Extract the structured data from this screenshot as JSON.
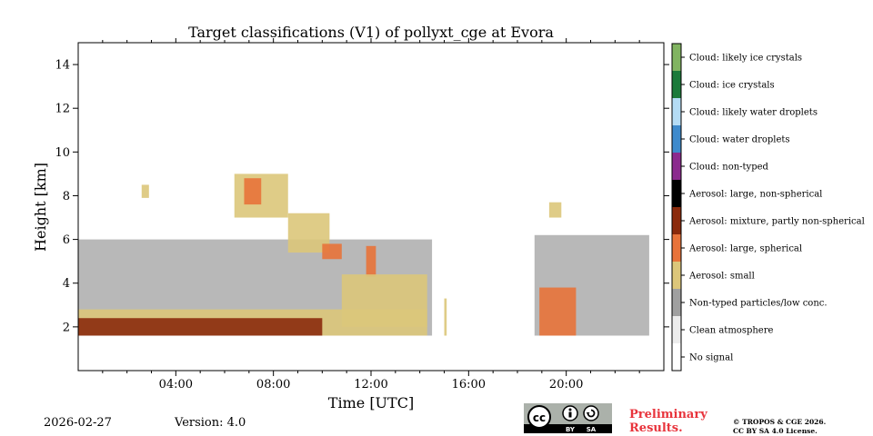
{
  "chart_data": {
    "type": "heatmap",
    "title": "Target classifications (V1) of pollyxt_cge at Evora",
    "xlabel": "Time [UTC]",
    "ylabel": "Height [km]",
    "xlim": [
      0,
      24
    ],
    "ylim": [
      0,
      15
    ],
    "x_ticks": [
      4,
      8,
      12,
      16,
      20
    ],
    "x_tick_labels": [
      "04:00",
      "08:00",
      "12:00",
      "16:00",
      "20:00"
    ],
    "y_ticks": [
      2,
      4,
      6,
      8,
      10,
      12,
      14
    ],
    "y_tick_labels": [
      "2",
      "4",
      "6",
      "8",
      "10",
      "12",
      "14"
    ],
    "colorbar": [
      {
        "label": "Cloud: likely ice crystals",
        "color": "#81b461"
      },
      {
        "label": "Cloud: ice crystals",
        "color": "#1b7a3a"
      },
      {
        "label": "Cloud: likely water droplets",
        "color": "#b4dcf5"
      },
      {
        "label": "Cloud: water droplets",
        "color": "#3e8acc"
      },
      {
        "label": "Cloud: non-typed",
        "color": "#8b2a8e"
      },
      {
        "label": "Aerosol: large, non-spherical",
        "color": "#000000"
      },
      {
        "label": "Aerosol: mixture, partly non-spherical",
        "color": "#8b2a0c"
      },
      {
        "label": "Aerosol: large, spherical",
        "color": "#e8733a"
      },
      {
        "label": "Aerosol: small",
        "color": "#dcc67a"
      },
      {
        "label": "Non-typed particles/low conc.",
        "color": "#a0a0a0"
      },
      {
        "label": "Clean atmosphere",
        "color": "#ececec"
      },
      {
        "label": "No signal",
        "color": "#ffffff"
      }
    ],
    "regions": [
      {
        "class": "Non-typed particles/low conc.",
        "t_start": 0.0,
        "t_end": 14.5,
        "h_bottom": 1.6,
        "h_top": 6.0
      },
      {
        "class": "Aerosol: small",
        "t_start": 0.0,
        "t_end": 14.3,
        "h_bottom": 1.6,
        "h_top": 2.8
      },
      {
        "class": "Aerosol: mixture, partly non-spherical",
        "t_start": 0.0,
        "t_end": 10.0,
        "h_bottom": 1.6,
        "h_top": 2.4
      },
      {
        "class": "Aerosol: small",
        "t_start": 2.6,
        "t_end": 2.9,
        "h_bottom": 7.9,
        "h_top": 8.5
      },
      {
        "class": "Aerosol: small",
        "t_start": 6.4,
        "t_end": 8.6,
        "h_bottom": 7.0,
        "h_top": 9.0
      },
      {
        "class": "Aerosol: large, spherical",
        "t_start": 6.8,
        "t_end": 7.5,
        "h_bottom": 7.6,
        "h_top": 8.8
      },
      {
        "class": "Aerosol: small",
        "t_start": 8.6,
        "t_end": 10.3,
        "h_bottom": 5.4,
        "h_top": 7.2
      },
      {
        "class": "Aerosol: large, spherical",
        "t_start": 10.0,
        "t_end": 10.8,
        "h_bottom": 5.1,
        "h_top": 5.8
      },
      {
        "class": "Aerosol: large, spherical",
        "t_start": 11.8,
        "t_end": 12.2,
        "h_bottom": 4.3,
        "h_top": 5.7
      },
      {
        "class": "Aerosol: small",
        "t_start": 10.8,
        "t_end": 14.3,
        "h_bottom": 2.0,
        "h_top": 4.4
      },
      {
        "class": "Aerosol: small",
        "t_start": 15.0,
        "t_end": 15.1,
        "h_bottom": 1.6,
        "h_top": 3.3
      },
      {
        "class": "Non-typed particles/low conc.",
        "t_start": 18.7,
        "t_end": 23.4,
        "h_bottom": 1.6,
        "h_top": 6.2
      },
      {
        "class": "Aerosol: large, spherical",
        "t_start": 18.9,
        "t_end": 20.4,
        "h_bottom": 1.6,
        "h_top": 3.8
      },
      {
        "class": "Aerosol: small",
        "t_start": 19.3,
        "t_end": 19.8,
        "h_bottom": 7.0,
        "h_top": 7.7
      }
    ]
  },
  "footer": {
    "date": "2026-02-27",
    "version": "Version: 4.0",
    "preliminary_line1": "Preliminary",
    "preliminary_line2": "Results.",
    "copyright_line1": "© TROPOS & CGE 2026.",
    "copyright_line2": "CC BY SA 4.0 License.",
    "cc_text": "cc",
    "by_text": "BY",
    "sa_text": "SA"
  }
}
